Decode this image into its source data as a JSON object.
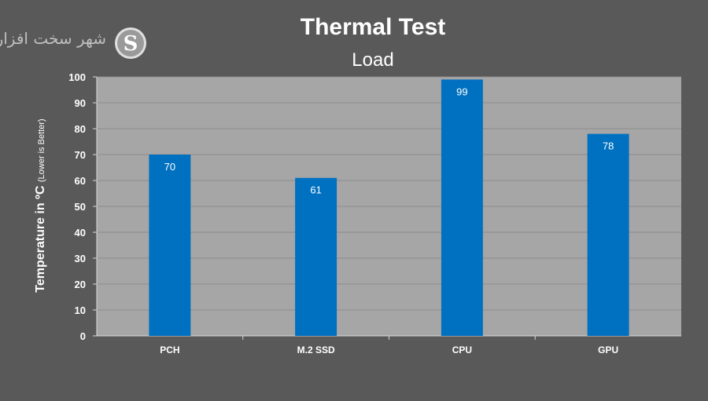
{
  "logo": {
    "text": "شهر سخت افزار",
    "icon": "s-logo-icon"
  },
  "chart_data": {
    "type": "bar",
    "title": "Thermal Test",
    "subtitle": "Load",
    "ylabel": "Temperature in ºC",
    "ylabel_note": "(Lower is Better)",
    "xlabel": "",
    "categories": [
      "PCH",
      "M.2 SSD",
      "CPU",
      "GPU"
    ],
    "values": [
      70,
      61,
      99,
      78
    ],
    "ylim": [
      0,
      100
    ],
    "ytick_step": 10,
    "grid": true,
    "legend": "none",
    "colors": {
      "bar": "#0070c0",
      "plot_bg": "#a6a6a6",
      "page_bg": "#595959",
      "grid": "#8c8c8c",
      "text": "#ffffff"
    }
  }
}
